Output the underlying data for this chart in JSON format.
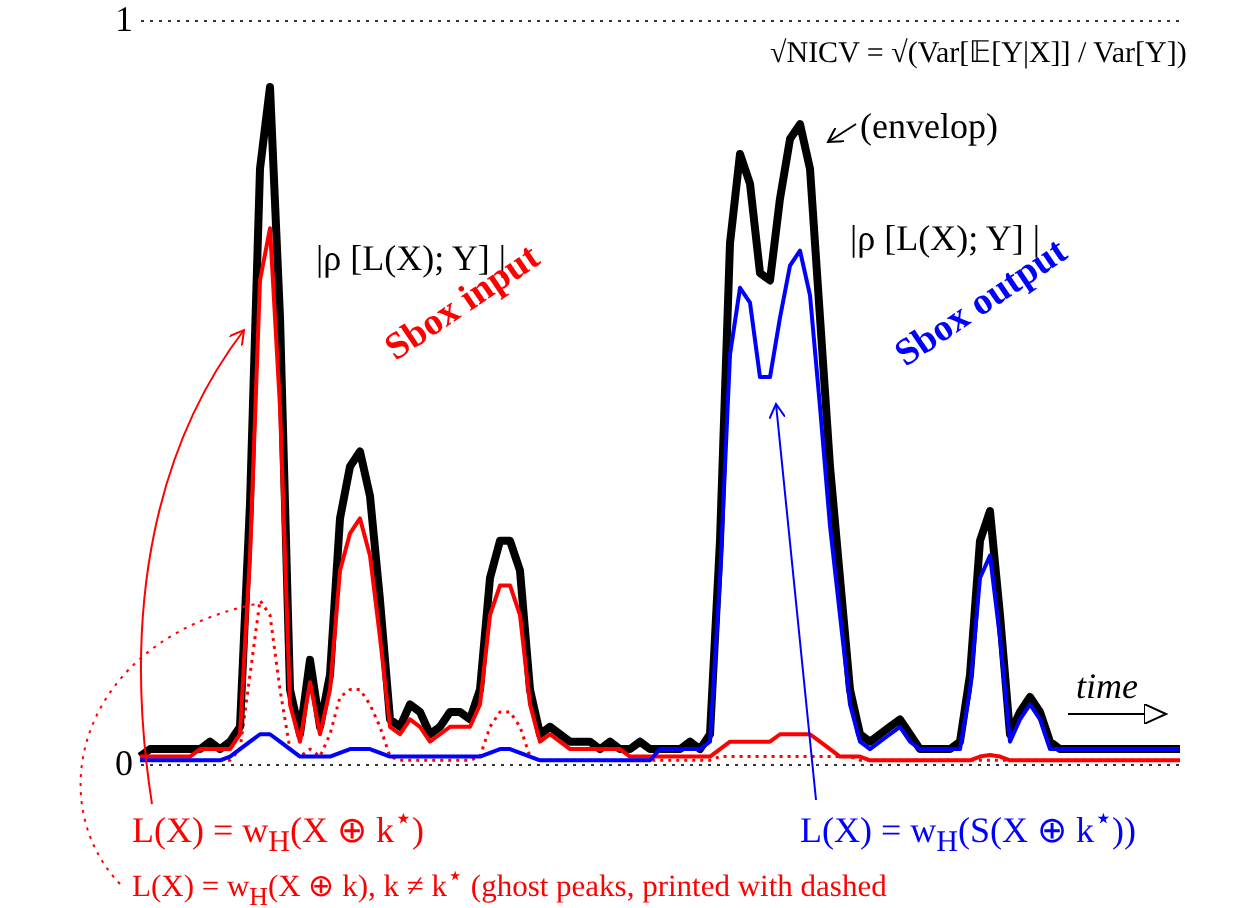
{
  "chart_data": {
    "type": "line",
    "categories": [
      null,
      null,
      null,
      null,
      null,
      null,
      null,
      null,
      null,
      null,
      null,
      null,
      null,
      null,
      null,
      null,
      null,
      null,
      null,
      null,
      null,
      null,
      null,
      null,
      null,
      null,
      null,
      null,
      null,
      null,
      null,
      null,
      null,
      null,
      null,
      null,
      null,
      null,
      null,
      null,
      null,
      null,
      null,
      null,
      null,
      null,
      null,
      null,
      null,
      null,
      null,
      null,
      null,
      null,
      null,
      null,
      null,
      null,
      null,
      null,
      null,
      null,
      null,
      null,
      null,
      null,
      null,
      null,
      null,
      null,
      null,
      null,
      null,
      null,
      null,
      null,
      null,
      null,
      null,
      null,
      null,
      null,
      null,
      null,
      null,
      null,
      null,
      null,
      null,
      null,
      null,
      null,
      null,
      null,
      null,
      null,
      null,
      null,
      null,
      null,
      null,
      null,
      null,
      null,
      null
    ],
    "series": [
      {
        "color": "#ff0000",
        "line_style": "dotted",
        "values": [
          0.005,
          0.005,
          0.005,
          0.005,
          0.005,
          0.005,
          0.005,
          0.005,
          0.005,
          0.005,
          0.02,
          0.12,
          0.22,
          0.2,
          0.1,
          0.02,
          0.01,
          0.02,
          0.01,
          0.04,
          0.09,
          0.1,
          0.1,
          0.08,
          0.05,
          0.01,
          0.005,
          0.005,
          0.005,
          0.005,
          0.005,
          0.005,
          0.005,
          0.005,
          0.01,
          0.05,
          0.07,
          0.07,
          0.05,
          0.01,
          0.005,
          0.005,
          0.005,
          0.005,
          0.005,
          0.005,
          0.005,
          0.005,
          0.005,
          0.005,
          0.005,
          0.005,
          0.005,
          0.005,
          0.005,
          0.005,
          0.005,
          0.005,
          0.01,
          0.01,
          0.01,
          0.01,
          0.01,
          0.01,
          0.01,
          0.01,
          0.01,
          0.01,
          0.01,
          0.01,
          0.01,
          0.01,
          0.005,
          0.005,
          0.005,
          0.005,
          0.005,
          0.005,
          0.005,
          0.005,
          0.005,
          0.005,
          0.005,
          0.005,
          0.005,
          0.005,
          0.005,
          0.005,
          0.005,
          0.005,
          0.005,
          0.005,
          0.005,
          0.005,
          0.005,
          0.005,
          0.005,
          0.005,
          0.005,
          0.005,
          0.005,
          0.005,
          0.005,
          0.005,
          0.005
        ]
      },
      {
        "color": "#000000",
        "values": [
          0.01,
          0.02,
          0.02,
          0.02,
          0.02,
          0.02,
          0.02,
          0.03,
          0.02,
          0.03,
          0.05,
          0.35,
          0.8,
          0.91,
          0.6,
          0.1,
          0.04,
          0.14,
          0.05,
          0.12,
          0.33,
          0.4,
          0.42,
          0.36,
          0.22,
          0.06,
          0.05,
          0.08,
          0.07,
          0.04,
          0.05,
          0.07,
          0.07,
          0.06,
          0.1,
          0.25,
          0.3,
          0.3,
          0.26,
          0.1,
          0.04,
          0.05,
          0.04,
          0.03,
          0.03,
          0.03,
          0.02,
          0.03,
          0.02,
          0.02,
          0.03,
          0.02,
          0.02,
          0.02,
          0.02,
          0.03,
          0.02,
          0.04,
          0.3,
          0.7,
          0.82,
          0.78,
          0.66,
          0.65,
          0.76,
          0.84,
          0.86,
          0.8,
          0.6,
          0.4,
          0.25,
          0.1,
          0.04,
          0.03,
          0.04,
          0.05,
          0.06,
          0.04,
          0.02,
          0.02,
          0.02,
          0.02,
          0.03,
          0.12,
          0.3,
          0.34,
          0.2,
          0.04,
          0.07,
          0.09,
          0.07,
          0.03,
          0.02,
          0.02,
          0.02,
          0.02,
          0.02,
          0.02,
          0.02,
          0.02,
          0.02,
          0.02,
          0.02,
          0.02,
          0.02
        ]
      },
      {
        "color": "#ff0000",
        "values": [
          0.01,
          0.01,
          0.01,
          0.01,
          0.01,
          0.01,
          0.02,
          0.02,
          0.02,
          0.02,
          0.04,
          0.28,
          0.65,
          0.72,
          0.48,
          0.08,
          0.03,
          0.11,
          0.04,
          0.1,
          0.26,
          0.31,
          0.33,
          0.28,
          0.17,
          0.05,
          0.04,
          0.06,
          0.05,
          0.03,
          0.04,
          0.05,
          0.05,
          0.05,
          0.08,
          0.2,
          0.24,
          0.24,
          0.2,
          0.08,
          0.03,
          0.04,
          0.03,
          0.02,
          0.02,
          0.02,
          0.02,
          0.02,
          0.02,
          0.01,
          0.01,
          0.01,
          0.01,
          0.01,
          0.01,
          0.01,
          0.01,
          0.01,
          0.02,
          0.03,
          0.03,
          0.03,
          0.03,
          0.03,
          0.04,
          0.04,
          0.04,
          0.04,
          0.03,
          0.02,
          0.01,
          0.01,
          0.01,
          0.005,
          0.005,
          0.005,
          0.005,
          0.005,
          0.005,
          0.005,
          0.005,
          0.005,
          0.005,
          0.005,
          0.01,
          0.012,
          0.01,
          0.005,
          0.005,
          0.005,
          0.005,
          0.005,
          0.005,
          0.005,
          0.005,
          0.005,
          0.005,
          0.005,
          0.005,
          0.005,
          0.005,
          0.005,
          0.005,
          0.005,
          0.005
        ]
      },
      {
        "color": "#0000ff",
        "values": [
          0.005,
          0.005,
          0.005,
          0.005,
          0.005,
          0.005,
          0.005,
          0.005,
          0.005,
          0.01,
          0.02,
          0.03,
          0.04,
          0.04,
          0.03,
          0.02,
          0.01,
          0.01,
          0.01,
          0.01,
          0.015,
          0.02,
          0.02,
          0.02,
          0.015,
          0.01,
          0.01,
          0.01,
          0.01,
          0.01,
          0.01,
          0.01,
          0.01,
          0.01,
          0.01,
          0.015,
          0.02,
          0.02,
          0.015,
          0.01,
          0.005,
          0.005,
          0.005,
          0.005,
          0.005,
          0.005,
          0.005,
          0.005,
          0.005,
          0.005,
          0.005,
          0.005,
          0.02,
          0.02,
          0.02,
          0.02,
          0.02,
          0.03,
          0.25,
          0.55,
          0.64,
          0.62,
          0.52,
          0.52,
          0.6,
          0.67,
          0.69,
          0.63,
          0.48,
          0.32,
          0.2,
          0.08,
          0.03,
          0.02,
          0.03,
          0.04,
          0.05,
          0.03,
          0.02,
          0.02,
          0.02,
          0.02,
          0.02,
          0.1,
          0.25,
          0.28,
          0.17,
          0.03,
          0.06,
          0.08,
          0.06,
          0.02,
          0.02,
          0.02,
          0.02,
          0.02,
          0.02,
          0.02,
          0.02,
          0.02,
          0.02,
          0.02,
          0.02,
          0.02,
          0.02
        ]
      }
    ],
    "ylim": [
      0,
      1
    ],
    "yticks": [
      0,
      1
    ],
    "grid": "y",
    "tick_labels": "y",
    "annotations": [
      "√NICV = √(Var[𝔼[Y|X]] / Var[Y])",
      "(envelop)",
      "|ρ [L(X); Y] |",
      "|ρ [L(X); Y] |",
      "Sbox input",
      "Sbox output",
      "time",
      "L(X) = w$_{H}$(X ⊕ k$^{⋆}$)",
      "L(X) = w$_{H}$(S(X ⊕ k$^{⋆}$))",
      "L(X) = w$_{H}$(X ⊕ k), k ≠ k$^{⋆}$ (ghost peaks, printed with dashed"
    ]
  }
}
